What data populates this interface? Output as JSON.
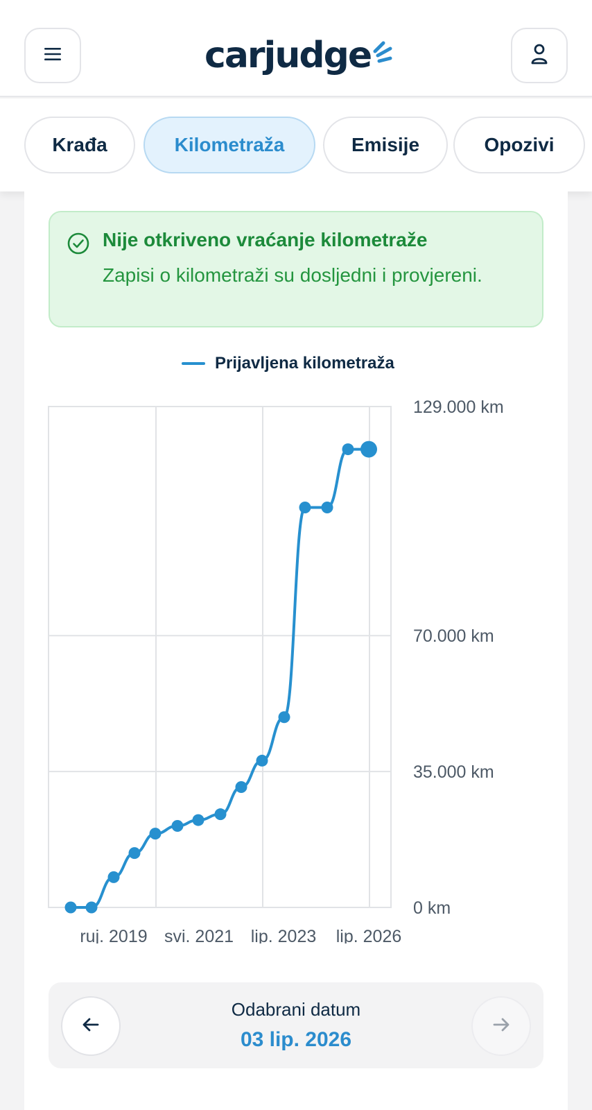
{
  "header": {
    "logo_text": "carjudge",
    "menu_icon": "hamburger-menu-icon",
    "user_icon": "user-icon"
  },
  "tabs": [
    {
      "label": "Krađa",
      "active": false
    },
    {
      "label": "Kilometraža",
      "active": true
    },
    {
      "label": "Emisije",
      "active": false
    },
    {
      "label": "Opozivi",
      "active": false
    }
  ],
  "alert": {
    "title": "Nije otkriveno vraćanje kilometraže",
    "text": "Zapisi o kilometraži su dosljedni i provjereni.",
    "icon": "check-circle-icon",
    "color": "#1c8a3a"
  },
  "chart_data": {
    "type": "line",
    "series": [
      {
        "name": "Prijavljena kilometraža",
        "color": "#2790cf",
        "points": [
          {
            "x": "2019-03",
            "y": 0
          },
          {
            "x": "2019-09",
            "y": 0
          },
          {
            "x": "2020-03",
            "y": 7800
          },
          {
            "x": "2020-09",
            "y": 14000
          },
          {
            "x": "2021-03",
            "y": 19000
          },
          {
            "x": "2021-09",
            "y": 21000
          },
          {
            "x": "2022-03",
            "y": 22500
          },
          {
            "x": "2022-09",
            "y": 24000
          },
          {
            "x": "2023-03",
            "y": 31000
          },
          {
            "x": "2023-09",
            "y": 37800
          },
          {
            "x": "2024-03",
            "y": 49000
          },
          {
            "x": "2024-09",
            "y": 103000
          },
          {
            "x": "2025-03",
            "y": 103000
          },
          {
            "x": "2025-09",
            "y": 118000
          },
          {
            "x": "2026-03",
            "y": 118000
          }
        ]
      }
    ],
    "selected_point": {
      "x": "2026-03",
      "y": 118000
    },
    "x_tick_labels": [
      "ruj. 2019",
      "svi. 2021",
      "lip. 2023",
      "lip. 2026"
    ],
    "y_tick_labels": [
      "129.000 km",
      "70.000 km",
      "35.000 km",
      "0 km"
    ],
    "y_ticks": [
      129000,
      70000,
      35000,
      0
    ],
    "ylim": [
      0,
      129000
    ],
    "grid": true,
    "legend_position": "top-center"
  },
  "date_picker": {
    "label": "Odabrani datum",
    "value": "03 lip. 2026",
    "prev_icon": "arrow-left-icon",
    "next_icon": "arrow-right-icon"
  }
}
